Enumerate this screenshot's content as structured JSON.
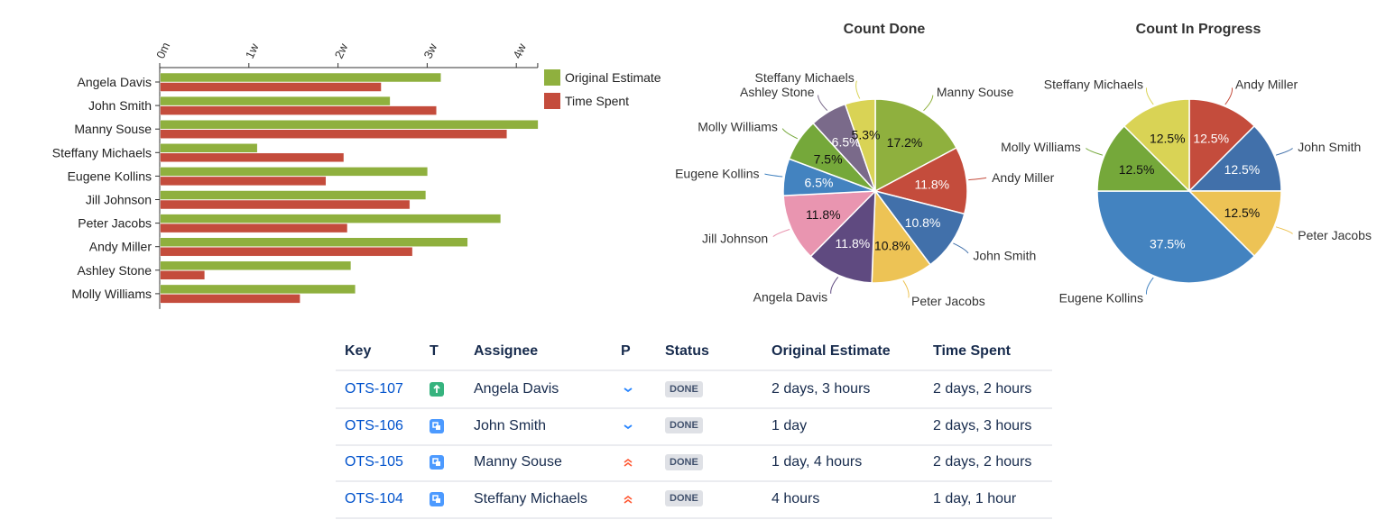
{
  "chart_data": [
    {
      "type": "bar",
      "orientation": "horizontal",
      "categories": [
        "Angela Davis",
        "John Smith",
        "Manny Souse",
        "Steffany Michaels",
        "Eugene Kollins",
        "Jill Johnson",
        "Peter Jacobs",
        "Andy Miller",
        "Ashley Stone",
        "Molly Williams"
      ],
      "x_unit": "weeks",
      "x_ticks": [
        "0m",
        "1w",
        "2w",
        "3w",
        "4w"
      ],
      "xlim": [
        0,
        4.24
      ],
      "legend_position": "right",
      "series": [
        {
          "name": "Original Estimate",
          "color": "#8fb03e",
          "values": [
            3.15,
            2.58,
            4.24,
            1.09,
            3.0,
            2.98,
            3.82,
            3.45,
            2.14,
            2.19
          ]
        },
        {
          "name": "Time Spent",
          "color": "#c44c3c",
          "values": [
            2.48,
            3.1,
            3.89,
            2.06,
            1.86,
            2.8,
            2.1,
            2.83,
            0.5,
            1.57
          ]
        }
      ]
    },
    {
      "type": "pie",
      "title": "Count Done",
      "slices": [
        {
          "label": "Manny Souse",
          "value": 17.2,
          "text": "17.2%",
          "color": "#8fb03e",
          "dark": false
        },
        {
          "label": "Andy Miller",
          "value": 11.8,
          "text": "11.8%",
          "color": "#c44c3c",
          "dark": true
        },
        {
          "label": "John Smith",
          "value": 10.8,
          "text": "10.8%",
          "color": "#4170aa",
          "dark": true
        },
        {
          "label": "Peter Jacobs",
          "value": 10.8,
          "text": "10.8%",
          "color": "#edc355",
          "dark": false
        },
        {
          "label": "Angela Davis",
          "value": 11.8,
          "text": "11.8%",
          "color": "#5f4a80",
          "dark": true
        },
        {
          "label": "Jill Johnson",
          "value": 11.8,
          "text": "11.8%",
          "color": "#e995b0",
          "dark": false
        },
        {
          "label": "Eugene Kollins",
          "value": 6.5,
          "text": "6.5%",
          "color": "#4383c0",
          "dark": true
        },
        {
          "label": "Molly Williams",
          "value": 7.5,
          "text": "7.5%",
          "color": "#75a83a",
          "dark": false
        },
        {
          "label": "Ashley Stone",
          "value": 6.5,
          "text": "6.5%",
          "color": "#7a6a8a",
          "dark": true
        },
        {
          "label": "Steffany Michaels",
          "value": 5.3,
          "text": "5.3%",
          "color": "#d9d355",
          "dark": false
        }
      ]
    },
    {
      "type": "pie",
      "title": "Count In Progress",
      "slices": [
        {
          "label": "Andy Miller",
          "value": 12.5,
          "text": "12.5%",
          "color": "#c44c3c",
          "dark": true
        },
        {
          "label": "John Smith",
          "value": 12.5,
          "text": "12.5%",
          "color": "#4170aa",
          "dark": true
        },
        {
          "label": "Peter Jacobs",
          "value": 12.5,
          "text": "12.5%",
          "color": "#edc355",
          "dark": false
        },
        {
          "label": "Eugene Kollins",
          "value": 37.5,
          "text": "37.5%",
          "color": "#4383c0",
          "dark": true
        },
        {
          "label": "Molly Williams",
          "value": 12.5,
          "text": "12.5%",
          "color": "#75a83a",
          "dark": false
        },
        {
          "label": "Steffany Michaels",
          "value": 12.5,
          "text": "12.5%",
          "color": "#d9d355",
          "dark": false
        }
      ]
    }
  ],
  "table": {
    "headers": [
      "Key",
      "T",
      "Assignee",
      "P",
      "Status",
      "Original Estimate",
      "Time Spent"
    ],
    "rows": [
      {
        "key": "OTS-107",
        "type": "story",
        "assignee": "Angela Davis",
        "priority": "low",
        "status": "DONE",
        "estimate": "2 days, 3 hours",
        "spent": "2 days, 2 hours"
      },
      {
        "key": "OTS-106",
        "type": "subtask",
        "assignee": "John Smith",
        "priority": "low",
        "status": "DONE",
        "estimate": "1 day",
        "spent": "2 days, 3 hours"
      },
      {
        "key": "OTS-105",
        "type": "subtask",
        "assignee": "Manny Souse",
        "priority": "highest",
        "status": "DONE",
        "estimate": "1 day, 4 hours",
        "spent": "2 days, 2 hours"
      },
      {
        "key": "OTS-104",
        "type": "subtask",
        "assignee": "Steffany Michaels",
        "priority": "highest",
        "status": "DONE",
        "estimate": "4 hours",
        "spent": "1 day, 1 hour"
      }
    ]
  }
}
